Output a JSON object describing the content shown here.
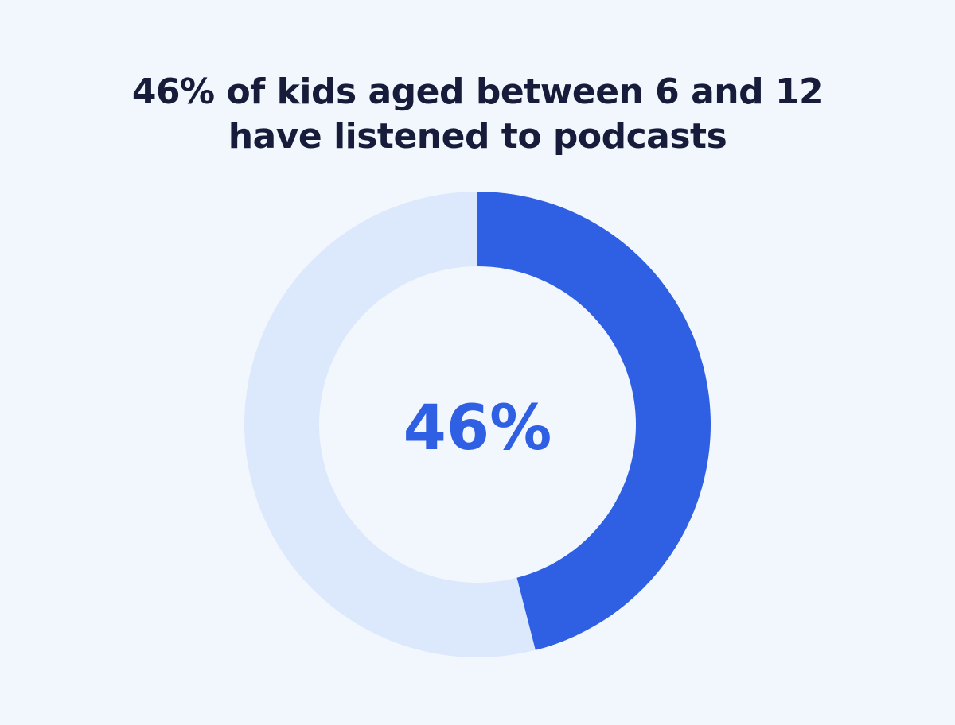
{
  "chart_data": {
    "type": "pie",
    "variant": "donut",
    "title_lines": [
      "46% of kids aged between 6 and 12",
      "have listened to podcasts"
    ],
    "center_label": "46%",
    "slices": [
      {
        "label": "",
        "value": 46,
        "color": "#2f5fe2"
      },
      {
        "label": "",
        "value": 54,
        "color": "#dce8fb"
      }
    ]
  },
  "colors": {
    "background": "#f1f7fd",
    "title": "#171c3a",
    "accent": "#2f5fe2",
    "remainder": "#dce8fb"
  }
}
